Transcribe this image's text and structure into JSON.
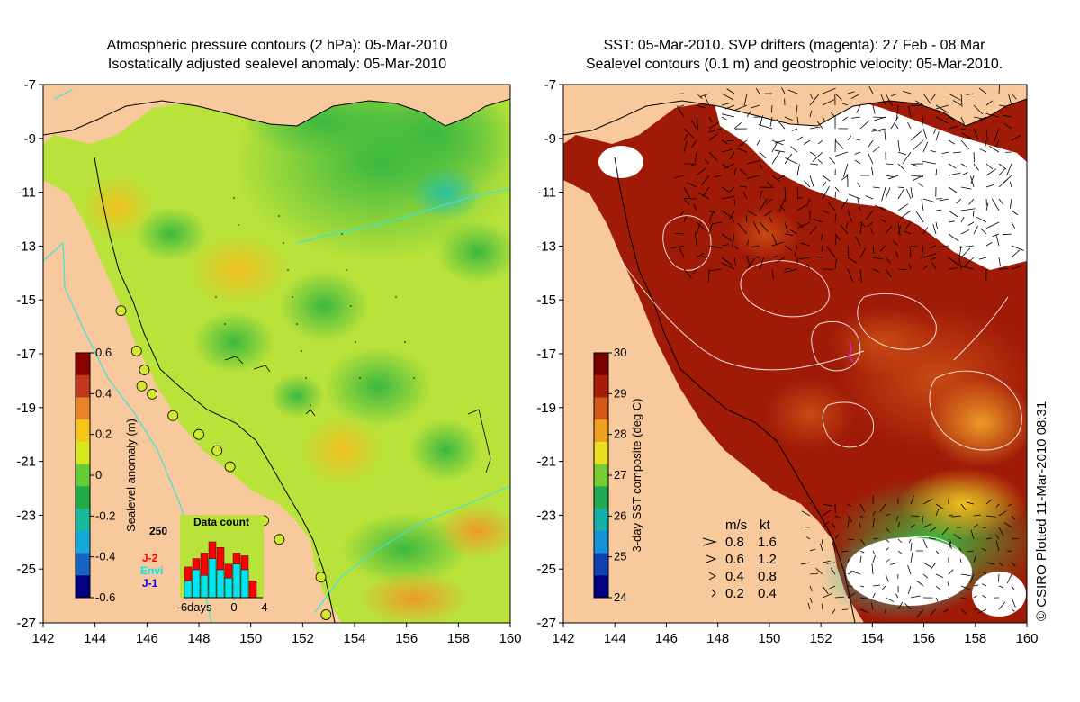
{
  "left_panel": {
    "title_line1": "Atmospheric pressure contours (2 hPa): 05-Mar-2010",
    "title_line2": "Isostatically adjusted sealevel anomaly: 05-Mar-2010",
    "colorbar": {
      "label": "Sealevel anomaly (m)",
      "ticks": [
        "0.6",
        "0.4",
        "0.2",
        "0",
        "-0.2",
        "-0.4",
        "-0.6"
      ],
      "colors": [
        "#8b0000",
        "#c0391b",
        "#e8852a",
        "#f5c518",
        "#d9e81a",
        "#66cc33",
        "#22aa44",
        "#18b89a",
        "#17a8d8",
        "#1565c0",
        "#000080"
      ]
    },
    "data_count": {
      "title": "Data count",
      "ymax_label": "250",
      "legend": [
        {
          "name": "J-2",
          "color": "#ff0000"
        },
        {
          "name": "Envi",
          "color": "#00e5ee"
        },
        {
          "name": "J-1",
          "color": "#0000ff"
        }
      ],
      "x_labels": [
        "-6days",
        "0",
        "4"
      ],
      "bars_j2": [
        0.55,
        0.7,
        0.8,
        1.0,
        0.9,
        0.6,
        0.8,
        0.75,
        0.3
      ],
      "bars_envi": [
        0.3,
        0.5,
        0.4,
        0.7,
        0.5,
        0.35,
        0.6,
        0.5,
        0.0
      ]
    },
    "tide_gauges": [
      {
        "lon": 145.0,
        "lat": -15.4
      },
      {
        "lon": 145.6,
        "lat": -16.9
      },
      {
        "lon": 145.9,
        "lat": -17.6
      },
      {
        "lon": 145.8,
        "lat": -18.2
      },
      {
        "lon": 146.2,
        "lat": -18.5
      },
      {
        "lon": 147.0,
        "lat": -19.3
      },
      {
        "lon": 148.0,
        "lat": -20.0
      },
      {
        "lon": 148.7,
        "lat": -20.6
      },
      {
        "lon": 149.2,
        "lat": -21.2
      },
      {
        "lon": 150.5,
        "lat": -23.2
      },
      {
        "lon": 151.1,
        "lat": -23.9
      },
      {
        "lon": 152.7,
        "lat": -25.3
      },
      {
        "lon": 152.9,
        "lat": -26.7
      }
    ]
  },
  "right_panel": {
    "title_line1": "SST: 05-Mar-2010. SVP drifters (magenta): 27 Feb - 08 Mar",
    "title_line2": "Sealevel contours (0.1 m) and geostrophic velocity: 05-Mar-2010.",
    "colorbar": {
      "label": "3-day SST composite (deg C)",
      "ticks": [
        "30",
        "29",
        "28",
        "27",
        "26",
        "25",
        "24"
      ],
      "colors": [
        "#7a0000",
        "#a81d0a",
        "#d2591a",
        "#f0a020",
        "#e8e020",
        "#77cc33",
        "#22aa55",
        "#16b0a8",
        "#1890d8",
        "#1040b0",
        "#000080"
      ]
    },
    "velocity_legend": {
      "header_ms": "m/s",
      "header_kt": "kt",
      "rows": [
        {
          "ms": "0.8",
          "kt": "1.6"
        },
        {
          "ms": "0.6",
          "kt": "1.2"
        },
        {
          "ms": "0.4",
          "kt": "0.8"
        },
        {
          "ms": "0.2",
          "kt": "0.4"
        }
      ]
    }
  },
  "axes": {
    "lon_labels": [
      "142",
      "144",
      "146",
      "148",
      "150",
      "152",
      "154",
      "156",
      "158",
      "160"
    ],
    "lat_labels": [
      "-7",
      "-9",
      "-11",
      "-13",
      "-15",
      "-17",
      "-19",
      "-21",
      "-23",
      "-25",
      "-27"
    ]
  },
  "colors": {
    "land": "#f8c99c",
    "ocean_left": "#b9e23a",
    "ocean_right": "#a01a08",
    "cyan_contour": "#40e0e0"
  },
  "stamp": "© CSIRO Plotted 11-Mar-2010 08:31"
}
